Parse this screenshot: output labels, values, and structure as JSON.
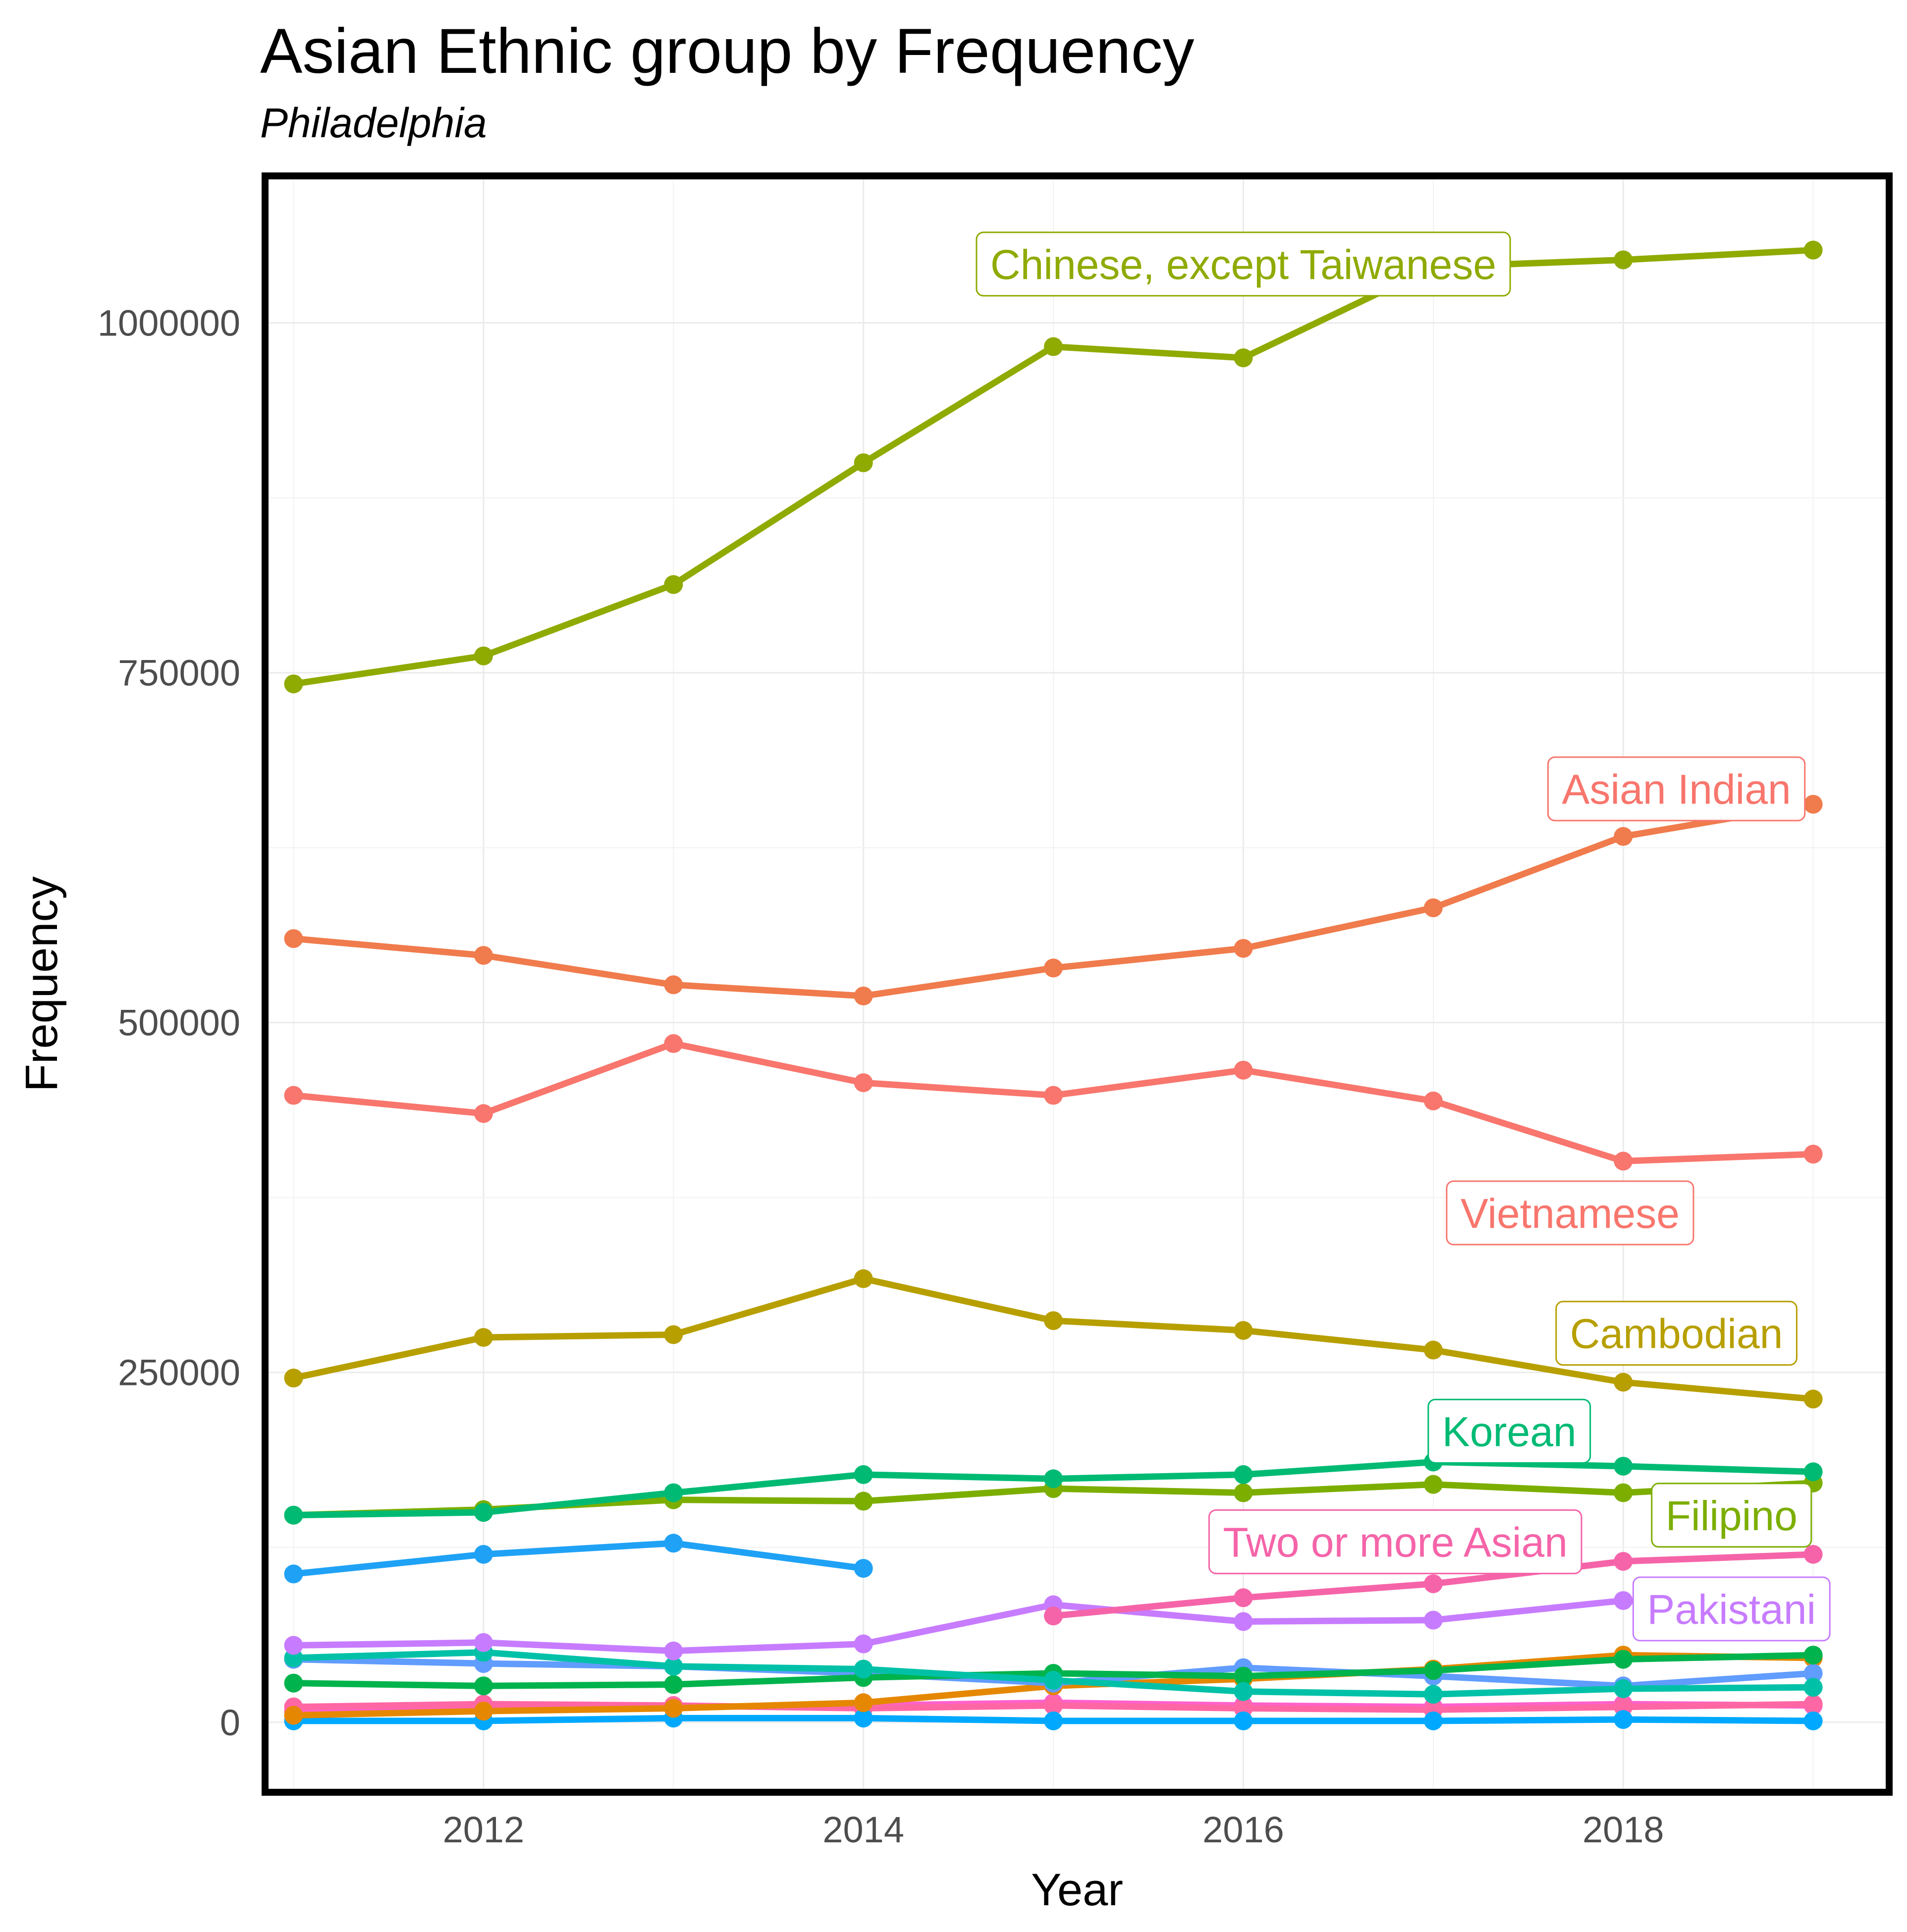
{
  "chart_data": {
    "type": "line",
    "title": "Asian Ethnic group by Frequency",
    "subtitle": "Philadelphia",
    "xlabel": "Year",
    "ylabel": "Frequency",
    "xlim": [
      2010.85,
      2019.4
    ],
    "ylim": [
      -50000,
      1105000
    ],
    "x_ticks": [
      2012,
      2014,
      2016,
      2018
    ],
    "y_ticks": [
      0,
      250000,
      500000,
      750000,
      1000000
    ],
    "grid": true,
    "legend": "none (direct labels)",
    "x": [
      2011,
      2012,
      2013,
      2014,
      2015,
      2016,
      2017,
      2018,
      2019
    ],
    "series": [
      {
        "name": "Chinese, except Taiwanese",
        "color": "#8FAA00",
        "values": [
          742000,
          762000,
          813000,
          900000,
          983000,
          975000,
          1040000,
          1045000,
          1052000
        ]
      },
      {
        "name": "Asian Indian",
        "color": "#F07B4C",
        "values": [
          560000,
          548000,
          527000,
          519000,
          539000,
          553000,
          582000,
          633000,
          656000
        ]
      },
      {
        "name": "Vietnamese",
        "color": "#F8766D",
        "values": [
          448000,
          435000,
          485000,
          457000,
          448000,
          466000,
          444000,
          401000,
          406000
        ]
      },
      {
        "name": "Cambodian",
        "color": "#B79F00",
        "values": [
          246000,
          275000,
          277000,
          317000,
          287000,
          280000,
          266000,
          243000,
          231000
        ]
      },
      {
        "name": "Korean",
        "color": "#00BA74",
        "values": [
          148000,
          150000,
          164000,
          177000,
          174000,
          177000,
          186000,
          183000,
          179000
        ]
      },
      {
        "name": "Filipino",
        "color": "#7CAE00",
        "values": [
          148000,
          152000,
          159000,
          158000,
          167000,
          164000,
          170000,
          164000,
          171000
        ]
      },
      {
        "name": "Two or more Asian",
        "color": "#F564A9",
        "values": [
          null,
          null,
          null,
          null,
          76000,
          89000,
          99000,
          115000,
          120000
        ]
      },
      {
        "name": "Pakistani",
        "color": "#C77CFF",
        "values": [
          55000,
          57000,
          51000,
          56000,
          84000,
          72000,
          73000,
          87000,
          82000
        ]
      },
      {
        "name": "",
        "color": "#1FA2F5",
        "values": [
          106000,
          120000,
          128000,
          110000,
          null,
          null,
          null,
          null,
          null
        ]
      },
      {
        "name": "",
        "color": "#00C1A7",
        "values": [
          46000,
          50000,
          40000,
          38000,
          30000,
          22000,
          20000,
          24000,
          25000
        ]
      },
      {
        "name": "",
        "color": "#00B34D",
        "values": [
          28000,
          26000,
          27000,
          32000,
          35000,
          33000,
          37000,
          45000,
          48000
        ]
      },
      {
        "name": "",
        "color": "#619CFF",
        "values": [
          45000,
          42000,
          40000,
          35000,
          28000,
          39000,
          33000,
          26000,
          35000
        ]
      },
      {
        "name": "",
        "color": "#E58700",
        "values": [
          5000,
          8000,
          10000,
          14000,
          26000,
          31000,
          38000,
          48000,
          46000
        ]
      },
      {
        "name": "",
        "color": "#00A9FF",
        "values": [
          1000,
          1000,
          3000,
          3000,
          1000,
          1000,
          1000,
          2000,
          1000
        ]
      },
      {
        "name": "",
        "color": "#FF67A4",
        "values": [
          11000,
          13000,
          12000,
          10000,
          12000,
          10000,
          9000,
          11000,
          13000
        ]
      },
      {
        "name": "",
        "color": "#FF61CC",
        "values": [
          8000,
          10000,
          11000,
          12000,
          14000,
          12000,
          11000,
          13000,
          12000
        ]
      }
    ],
    "annotations": [
      {
        "text": "Chinese, except Taiwanese",
        "color": "#8FAA00",
        "x": 2016.0,
        "y": 1042000
      },
      {
        "text": "Asian Indian",
        "color": "#F8766D",
        "x": 2018.28,
        "y": 667000
      },
      {
        "text": "Vietnamese",
        "color": "#F8766D",
        "x": 2017.72,
        "y": 364000
      },
      {
        "text": "Cambodian",
        "color": "#B79F00",
        "x": 2018.28,
        "y": 278000
      },
      {
        "text": "Korean",
        "color": "#00BA74",
        "x": 2017.4,
        "y": 208000
      },
      {
        "text": "Filipino",
        "color": "#7CAE00",
        "x": 2018.57,
        "y": 148000
      },
      {
        "text": "Two or more Asian",
        "color": "#F564A9",
        "x": 2016.8,
        "y": 129000
      },
      {
        "text": "Pakistani",
        "color": "#C77CFF",
        "x": 2018.57,
        "y": 81000
      }
    ]
  }
}
